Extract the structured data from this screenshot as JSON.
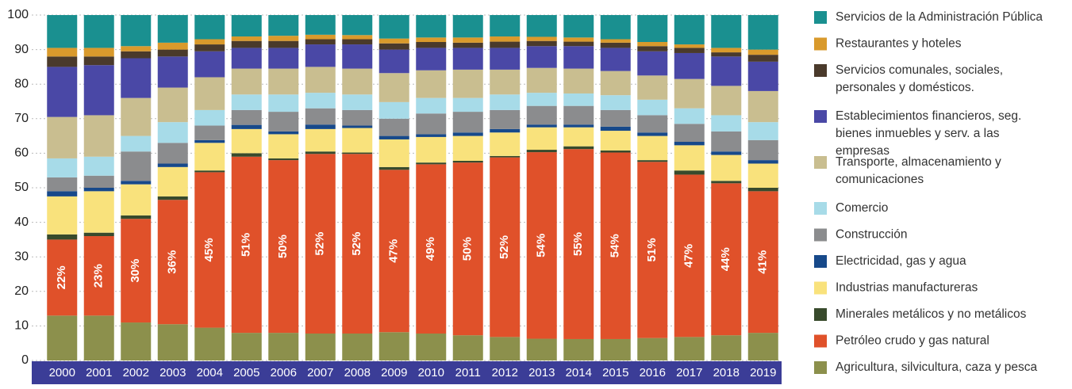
{
  "chart_data": {
    "type": "bar",
    "stacked": true,
    "categories": [
      "2000",
      "2001",
      "2002",
      "2003",
      "2004",
      "2005",
      "2006",
      "2007",
      "2008",
      "2009",
      "2010",
      "2011",
      "2012",
      "2013",
      "2014",
      "2015",
      "2016",
      "2017",
      "2018",
      "2019"
    ],
    "ylim": [
      0,
      100
    ],
    "yticks": [
      0,
      10,
      20,
      30,
      40,
      50,
      60,
      70,
      80,
      90,
      100
    ],
    "grid": true,
    "legend": "right",
    "series": [
      {
        "name": "Agricultura, silvicultura, caza y pesca",
        "color": "#8c904c",
        "values": [
          13,
          13,
          11,
          10.5,
          9.5,
          8,
          8,
          7.8,
          7.8,
          8.2,
          7.8,
          7.3,
          6.8,
          6.3,
          6.2,
          6.2,
          6.5,
          6.8,
          7.3,
          8
        ]
      },
      {
        "name": "Petróleo crudo y gas natural",
        "color": "#e0512a",
        "values": [
          22,
          23,
          30,
          36,
          45,
          51,
          50,
          52,
          52,
          47,
          49,
          50,
          52,
          54,
          55,
          54,
          51,
          47,
          44,
          41
        ],
        "value_labels": [
          "22%",
          "23%",
          "30%",
          "36%",
          "45%",
          "51%",
          "50%",
          "52%",
          "52%",
          "47%",
          "49%",
          "50%",
          "52%",
          "54%",
          "55%",
          "54%",
          "51%",
          "47%",
          "44%",
          "41%"
        ]
      },
      {
        "name": "Minerales metálicos y no metálicos",
        "color": "#384a2c",
        "values": [
          1.5,
          1,
          1,
          1,
          0.5,
          1,
          0.5,
          0.7,
          0.4,
          0.8,
          0.5,
          0.5,
          0.4,
          0.7,
          0.8,
          0.6,
          0.5,
          1.2,
          0.7,
          1
        ]
      },
      {
        "name": "Industrias manufactureras",
        "color": "#f9e27c",
        "values": [
          11,
          12,
          9,
          8.5,
          8,
          7,
          7,
          6.5,
          7.1,
          8,
          7.4,
          7.2,
          6.8,
          6.5,
          5.5,
          5.7,
          7,
          7.3,
          7.5,
          7
        ]
      },
      {
        "name": "Electricidad, gas y agua",
        "color": "#17498a",
        "values": [
          1.5,
          1,
          1,
          1,
          0.8,
          1.2,
          0.8,
          1.3,
          0.7,
          1,
          0.8,
          1,
          1,
          0.8,
          0.8,
          1.2,
          1,
          1,
          1,
          1
        ]
      },
      {
        "name": "Construcción",
        "color": "#8b8c8e",
        "values": [
          4,
          3.5,
          8.5,
          6,
          4.2,
          4.3,
          5.7,
          4.7,
          4.5,
          5,
          6,
          6,
          5.5,
          5.4,
          5.4,
          4.8,
          5,
          5.2,
          5.8,
          5.8
        ]
      },
      {
        "name": "Comercio",
        "color": "#a7dbe8",
        "values": [
          5.5,
          5.5,
          4.5,
          6,
          4.5,
          4.5,
          5,
          4.5,
          4.5,
          4.8,
          4.5,
          4,
          4.5,
          3.8,
          3.6,
          4.3,
          4.5,
          4.5,
          4.7,
          5.2
        ]
      },
      {
        "name": "Transporte, almacenamiento y comunicaciones",
        "color": "#c9be90",
        "values": [
          12,
          12,
          11,
          10,
          9.5,
          7.5,
          7.5,
          7.5,
          7.5,
          8.4,
          8,
          8.2,
          7.2,
          7.2,
          7.2,
          7,
          7,
          8.5,
          8.5,
          9
        ]
      },
      {
        "name": "Establecimientos financieros, seg. bienes inmuebles y serv. a las empresas",
        "color": "#4a48a6",
        "values": [
          14.5,
          14.5,
          11.5,
          9,
          7.5,
          6,
          6,
          6.5,
          7,
          6.8,
          6.5,
          6.3,
          6.3,
          6.3,
          6.5,
          6.7,
          7,
          7.5,
          8.5,
          8.5
        ]
      },
      {
        "name": "Servicios comunales, sociales, personales y domésticos.",
        "color": "#4a3a2b",
        "values": [
          3,
          2.5,
          2,
          2,
          2,
          2,
          2,
          1.5,
          1.5,
          1.8,
          1.7,
          1.5,
          1.8,
          1.5,
          1.3,
          1.5,
          1.5,
          1.5,
          1.2,
          2
        ]
      },
      {
        "name": "Restaurantes y hoteles",
        "color": "#d99a2c",
        "values": [
          2.5,
          2.5,
          1.5,
          2,
          1.5,
          1.3,
          1.5,
          1.3,
          1.2,
          1.4,
          1.3,
          1.5,
          1.5,
          1.2,
          1.2,
          1,
          1.2,
          1,
          1.3,
          1.5
        ]
      },
      {
        "name": "Servicios de la Administración Pública",
        "color": "#1a9090",
        "values": [
          9.5,
          9.5,
          9,
          8,
          7,
          6.2,
          6,
          5.7,
          5.8,
          6.8,
          6.5,
          6.5,
          6.2,
          6.3,
          6.5,
          7,
          7.8,
          8.5,
          9.5,
          10
        ]
      }
    ]
  }
}
